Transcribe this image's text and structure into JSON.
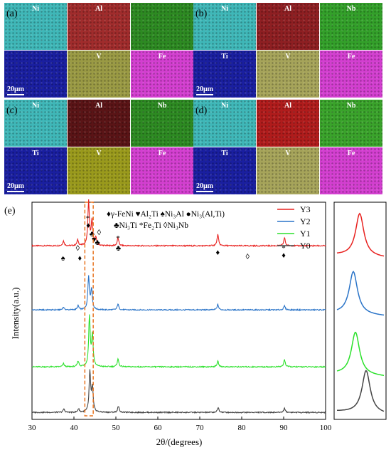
{
  "eds_panels": [
    {
      "tag": "(a)",
      "tiles": [
        {
          "el": "Ni",
          "color": "#3fb7b8"
        },
        {
          "el": "Al",
          "color": "#a02c2c"
        },
        {
          "el": "",
          "color": "#2d8a22"
        },
        {
          "el": "",
          "color": "#1a1fa0"
        },
        {
          "el": "V",
          "color": "#9a9a44"
        },
        {
          "el": "Fe",
          "color": "#d33fd0"
        }
      ],
      "scale": "20μm"
    },
    {
      "tag": "(b)",
      "tiles": [
        {
          "el": "Ni",
          "color": "#3fb7b8"
        },
        {
          "el": "Al",
          "color": "#8e1f22"
        },
        {
          "el": "Nb",
          "color": "#33a02a"
        },
        {
          "el": "Ti",
          "color": "#1a1fa0"
        },
        {
          "el": "V",
          "color": "#a6a45a"
        },
        {
          "el": "Fe",
          "color": "#d33fd0"
        }
      ],
      "scale": "20μm"
    },
    {
      "tag": "(c)",
      "tiles": [
        {
          "el": "Ni",
          "color": "#3fb7b8"
        },
        {
          "el": "Al",
          "color": "#5a1416"
        },
        {
          "el": "Nb",
          "color": "#2d8a22"
        },
        {
          "el": "Ti",
          "color": "#1a1fa0"
        },
        {
          "el": "V",
          "color": "#9a9a1c"
        },
        {
          "el": "Fe",
          "color": "#d33fd0"
        }
      ],
      "scale": "20μm"
    },
    {
      "tag": "(d)",
      "tiles": [
        {
          "el": "Ni",
          "color": "#3fb7b8"
        },
        {
          "el": "Al",
          "color": "#b01c1c"
        },
        {
          "el": "Nb",
          "color": "#3aa32b"
        },
        {
          "el": "Ti",
          "color": "#1a1fa0"
        },
        {
          "el": "V",
          "color": "#a6a45a"
        },
        {
          "el": "Fe",
          "color": "#d33fd0"
        }
      ],
      "scale": "20μm"
    }
  ],
  "chart_data": {
    "type": "line",
    "panel_tag": "(e)",
    "xlabel": "2θ/(degrees)",
    "ylabel": "Intensity(a.u.)",
    "xlim": [
      30,
      100
    ],
    "xticks": [
      "30",
      "40",
      "50",
      "60",
      "70",
      "80",
      "90",
      "100"
    ],
    "legend": [
      "Y3",
      "Y2",
      "Y1",
      "Y0"
    ],
    "phase_legend_line1": [
      "♦γ-FeNi",
      "♥Al₂Ti",
      "♠Ni₃Al",
      "●Ni₃(Al,Ti)"
    ],
    "phase_legend_line2": [
      "♣Ni₃Ti",
      "*Fe₂Ti",
      "◊Ni₃Nb"
    ],
    "series": [
      {
        "name": "Y3",
        "color": "#e8211f",
        "peaks": [
          [
            37.5,
            0.06
          ],
          [
            40.9,
            0.07
          ],
          [
            43.5,
            0.55
          ],
          [
            44.3,
            0.3
          ],
          [
            45.2,
            0.1
          ],
          [
            50.5,
            0.1
          ],
          [
            74.3,
            0.14
          ],
          [
            90.2,
            0.1
          ]
        ]
      },
      {
        "name": "Y2",
        "color": "#2a74c8",
        "peaks": [
          [
            37.5,
            0.04
          ],
          [
            41.0,
            0.06
          ],
          [
            43.5,
            0.5
          ],
          [
            44.2,
            0.3
          ],
          [
            50.5,
            0.09
          ],
          [
            74.3,
            0.08
          ],
          [
            90.2,
            0.06
          ]
        ]
      },
      {
        "name": "Y1",
        "color": "#2be12b",
        "peaks": [
          [
            37.5,
            0.04
          ],
          [
            41.0,
            0.07
          ],
          [
            43.7,
            0.62
          ],
          [
            44.4,
            0.38
          ],
          [
            50.5,
            0.1
          ],
          [
            74.3,
            0.07
          ],
          [
            90.2,
            0.09
          ]
        ]
      },
      {
        "name": "Y0",
        "color": "#444444",
        "peaks": [
          [
            37.6,
            0.05
          ],
          [
            41.1,
            0.05
          ],
          [
            43.8,
            0.58
          ],
          [
            44.4,
            0.34
          ],
          [
            50.6,
            0.09
          ],
          [
            74.4,
            0.07
          ],
          [
            90.2,
            0.06
          ]
        ]
      }
    ],
    "annotations": [
      {
        "x": 43.3,
        "sym": "*"
      },
      {
        "x": 43.4,
        "sym": "♦"
      },
      {
        "x": 44.3,
        "sym": "♣"
      },
      {
        "x": 44.8,
        "sym": "♥"
      },
      {
        "x": 45.6,
        "sym": "♣"
      },
      {
        "x": 46.0,
        "sym": "◊"
      },
      {
        "x": 37.4,
        "sym": "♠"
      },
      {
        "x": 40.9,
        "sym": "◊"
      },
      {
        "x": 41.4,
        "sym": "♦"
      },
      {
        "x": 50.5,
        "sym": "*"
      },
      {
        "x": 50.6,
        "sym": "♣"
      },
      {
        "x": 74.3,
        "sym": "♦"
      },
      {
        "x": 81.4,
        "sym": "◊"
      },
      {
        "x": 90.0,
        "sym": "*"
      },
      {
        "x": 90.0,
        "sym": "♦"
      }
    ]
  }
}
